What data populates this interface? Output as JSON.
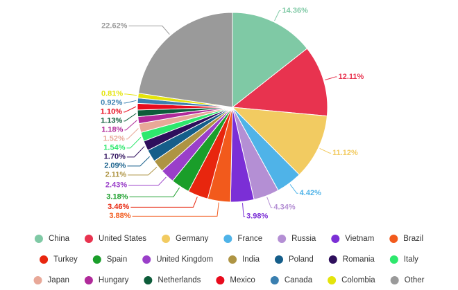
{
  "chart_data": {
    "type": "pie",
    "categories": [
      "China",
      "United States",
      "Germany",
      "France",
      "Russia",
      "Vietnam",
      "Brazil",
      "Turkey",
      "Spain",
      "United Kingdom",
      "India",
      "Poland",
      "Romania",
      "Italy",
      "Japan",
      "Hungary",
      "Netherlands",
      "Mexico",
      "Canada",
      "Colombia",
      "Other"
    ],
    "values": [
      14.36,
      12.11,
      11.12,
      4.42,
      4.34,
      3.98,
      3.88,
      3.46,
      3.18,
      2.43,
      2.11,
      2.09,
      1.7,
      1.54,
      1.52,
      1.18,
      1.13,
      1.1,
      0.92,
      0.81,
      22.62
    ],
    "value_labels": [
      "14.36%",
      "12.11%",
      "11.12%",
      "4.42%",
      "4.34%",
      "3.98%",
      "3.88%",
      "3.46%",
      "3.18%",
      "2.43%",
      "2.11%",
      "2.09%",
      "1.70%",
      "1.54%",
      "1.52%",
      "1.18%",
      "1.13%",
      "1.10%",
      "0.92%",
      "0.81%",
      "22.62%"
    ],
    "colors": [
      "#7fc9a5",
      "#e8334f",
      "#f2cb61",
      "#4fb3e8",
      "#b48fd4",
      "#7b2fd6",
      "#f25a1c",
      "#e8260e",
      "#1a9e2a",
      "#9a3fc9",
      "#ae9443",
      "#155e8a",
      "#2e0f5c",
      "#2ee86d",
      "#e8a898",
      "#b02a9a",
      "#0d5c3a",
      "#e80b1d",
      "#3a7fb0",
      "#e4e40b",
      "#9a9a9a"
    ],
    "legend": "bottom"
  }
}
